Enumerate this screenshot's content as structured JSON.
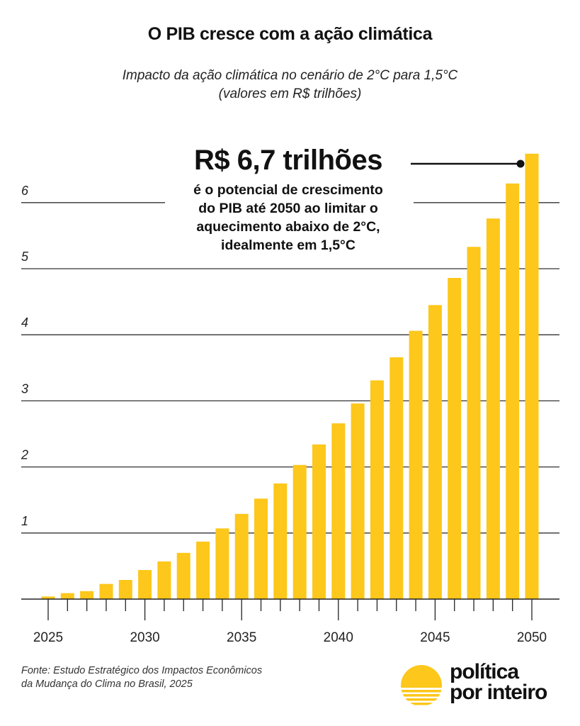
{
  "header": {
    "title": "O PIB cresce com a ação climática",
    "subtitle_line1": "Impacto da ação climática no cenário de 2°C para 1,5°C",
    "subtitle_line2": "(valores em R$ trilhões)"
  },
  "annotation": {
    "headline": "R$ 6,7 trilhões",
    "line1": "é o potencial de crescimento",
    "line2": "do PIB até 2050 ao limitar o",
    "line3": "aquecimento abaixo de 2°C,",
    "line4": "idealmente em 1,5°C",
    "points_to_year": 2050
  },
  "footer": {
    "source_line1": "Fonte: Estudo Estratégico dos Impactos Econômicos",
    "source_line2": "da Mudança do Clima no Brasil, 2025",
    "logo_line1": "política",
    "logo_line2": "por inteiro"
  },
  "colors": {
    "bar": "#FDC71B",
    "text": "#111111",
    "gridline": "#333333"
  },
  "chart_data": {
    "type": "bar",
    "title": "O PIB cresce com a ação climática",
    "subtitle": "Impacto da ação climática no cenário de 2°C para 1,5°C (valores em R$ trilhões)",
    "xlabel": "",
    "ylabel": "",
    "ylim": [
      0,
      7
    ],
    "grid": true,
    "y_ticks": [
      1,
      2,
      3,
      4,
      5,
      6
    ],
    "y_tick_labels": [
      "1",
      "2",
      "3",
      "4",
      "5",
      "6"
    ],
    "x_tick_labels": [
      "2025",
      "2030",
      "2035",
      "2040",
      "2045",
      "2050"
    ],
    "categories": [
      2025,
      2026,
      2027,
      2028,
      2029,
      2030,
      2031,
      2032,
      2033,
      2034,
      2035,
      2036,
      2037,
      2038,
      2039,
      2040,
      2041,
      2042,
      2043,
      2044,
      2045,
      2046,
      2047,
      2048,
      2049,
      2050
    ],
    "values": [
      0.04,
      0.09,
      0.12,
      0.23,
      0.29,
      0.44,
      0.57,
      0.7,
      0.87,
      1.07,
      1.29,
      1.52,
      1.75,
      2.03,
      2.34,
      2.66,
      2.96,
      3.31,
      3.66,
      4.06,
      4.45,
      4.86,
      5.33,
      5.76,
      6.29,
      6.74
    ]
  }
}
